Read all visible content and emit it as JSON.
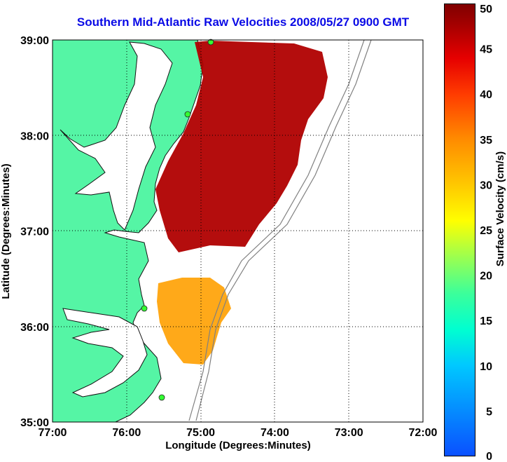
{
  "title": "Southern Mid-Atlantic Raw Velocities 2008/05/27 0900 GMT",
  "xlabel": "Longitude (Degrees:Minutes)",
  "ylabel": "Latitude (Degrees:Minutes)",
  "x_ticks": [
    "77:00",
    "76:00",
    "75:00",
    "74:00",
    "73:00",
    "72:00"
  ],
  "y_ticks": [
    "39:00",
    "38:00",
    "37:00",
    "36:00",
    "35:00"
  ],
  "colorbar": {
    "label": "Surface Velocity (cm/s)",
    "ticks": [
      "50",
      "45",
      "40",
      "35",
      "30",
      "25",
      "20",
      "15",
      "10",
      "5",
      "0"
    ],
    "min": 0,
    "max": 50
  },
  "colors": {
    "land": "#55f5a5",
    "ocean": "#ffffff",
    "grid": "#000000",
    "title": "#0a0ae6",
    "bathymetry": "#808080",
    "sites": "#33ff33"
  },
  "map_extent": {
    "lon": [
      -77,
      -72
    ],
    "lat": [
      35,
      39
    ]
  }
}
